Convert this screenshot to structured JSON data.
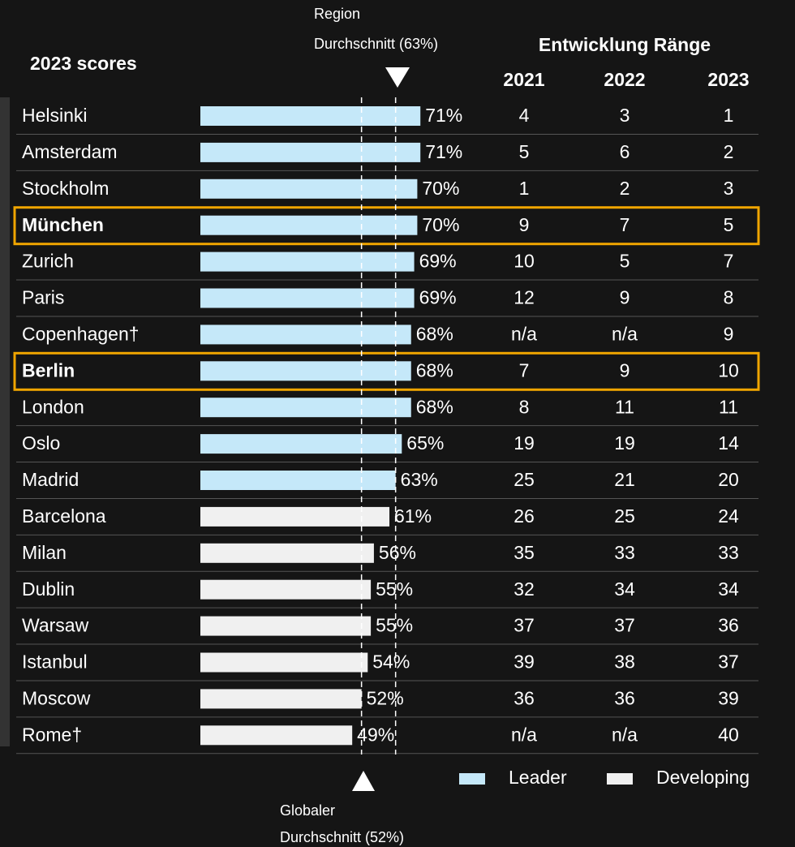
{
  "chart_data": {
    "type": "bar",
    "orientation": "horizontal",
    "title": "2023 scores",
    "categories": [
      "Helsinki",
      "Amsterdam",
      "Stockholm",
      "München",
      "Zurich",
      "Paris",
      "Copenhagen†",
      "Berlin",
      "London",
      "Oslo",
      "Madrid",
      "Barcelona",
      "Milan",
      "Dublin",
      "Warsaw",
      "Istanbul",
      "Moscow",
      "Rome†"
    ],
    "highlighted": [
      false,
      false,
      false,
      true,
      false,
      false,
      false,
      true,
      false,
      false,
      false,
      false,
      false,
      false,
      false,
      false,
      false,
      false
    ],
    "highlight_color": "#f0a500",
    "series": [
      {
        "name": "Leader",
        "color": "#c5e8f9",
        "values": [
          71,
          71,
          70,
          70,
          69,
          69,
          68,
          68,
          68,
          65,
          63,
          null,
          null,
          null,
          null,
          null,
          null,
          null
        ],
        "value_labels": [
          "71%",
          "71%",
          "70%",
          "70%",
          "69%",
          "69%",
          "68%",
          "68%",
          "68%",
          "65%",
          "63%",
          null,
          null,
          null,
          null,
          null,
          null,
          null
        ]
      },
      {
        "name": "Developing",
        "color": "#f0f0f0",
        "values": [
          null,
          null,
          null,
          null,
          null,
          null,
          null,
          null,
          null,
          null,
          null,
          61,
          56,
          55,
          55,
          54,
          52,
          49
        ],
        "value_labels": [
          null,
          null,
          null,
          null,
          null,
          null,
          null,
          null,
          null,
          null,
          null,
          "61%",
          "56%",
          "55%",
          "55%",
          "54%",
          "52%",
          "49%"
        ]
      }
    ],
    "reference_lines": [
      {
        "value": 63,
        "label": [
          "Region",
          "Durchschnitt (63%)"
        ],
        "position": "top"
      },
      {
        "value": 52,
        "label": [
          "Globaler",
          "Durchschnitt (52%)"
        ],
        "position": "bottom"
      }
    ],
    "ranks": {
      "title": "Entwicklung Ränge",
      "columns": [
        "2021",
        "2022",
        "2023"
      ],
      "rows": [
        [
          4,
          3,
          1
        ],
        [
          5,
          6,
          2
        ],
        [
          1,
          2,
          3
        ],
        [
          9,
          7,
          5
        ],
        [
          10,
          5,
          7
        ],
        [
          12,
          9,
          8
        ],
        [
          "n/a",
          "n/a",
          9
        ],
        [
          7,
          9,
          10
        ],
        [
          8,
          11,
          11
        ],
        [
          19,
          19,
          14
        ],
        [
          25,
          21,
          20
        ],
        [
          26,
          25,
          24
        ],
        [
          35,
          33,
          33
        ],
        [
          32,
          34,
          34
        ],
        [
          37,
          37,
          36
        ],
        [
          39,
          38,
          37
        ],
        [
          36,
          36,
          39
        ],
        [
          "n/a",
          "n/a",
          40
        ]
      ]
    }
  }
}
